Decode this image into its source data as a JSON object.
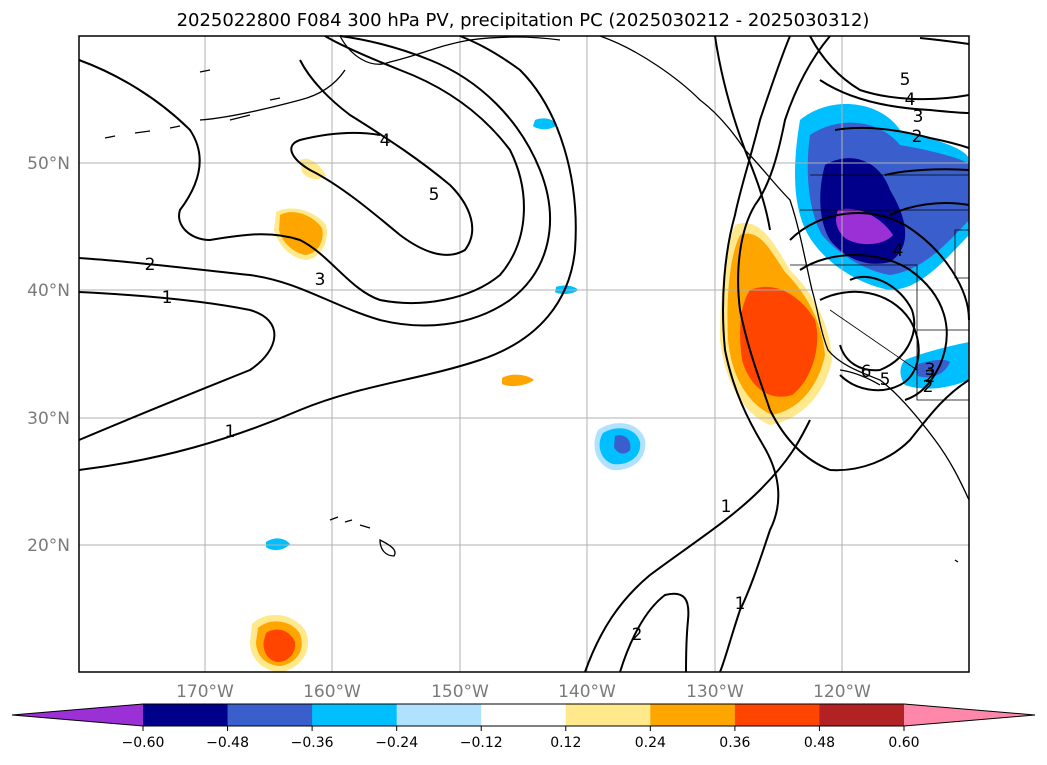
{
  "title": "2025022800 F084 300 hPa PV, precipitation PC (2025030212 - 2025030312)",
  "lat_labels": [
    "50°N",
    "40°N",
    "30°N",
    "20°N"
  ],
  "lon_labels": [
    "170°W",
    "160°W",
    "150°W",
    "140°W",
    "130°W",
    "120°W"
  ],
  "contour_labels": [
    "2",
    "1",
    "1",
    "3",
    "4",
    "5",
    "1",
    "2",
    "1",
    "5",
    "4",
    "3",
    "2",
    "4",
    "3",
    "2",
    "2",
    "5",
    "6"
  ],
  "colorbar": {
    "ticks": [
      "−0.60",
      "−0.48",
      "−0.36",
      "−0.24",
      "−0.12",
      "0.12",
      "0.24",
      "0.36",
      "0.48",
      "0.60"
    ],
    "colors": [
      "#9b30d6",
      "#00008b",
      "#3a5fcd",
      "#00bfff",
      "#b0e2ff",
      "#ffffff",
      "#ffe98c",
      "#ffa500",
      "#ff4500",
      "#b22222",
      "#ff88aa"
    ]
  }
}
